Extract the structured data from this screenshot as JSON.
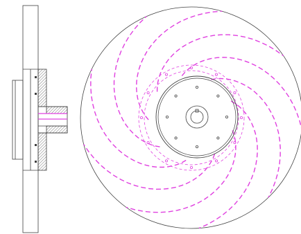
{
  "drawing": {
    "views": [
      "side-section-view",
      "front-view"
    ],
    "colors": {
      "outline": "#404040",
      "hidden_line": "#e040e0",
      "hatch": "#555555",
      "background": "#ffffff"
    },
    "front_view": {
      "blade_count": 9,
      "hub_bolt_holes": 8,
      "shroud_holes": 12,
      "line_style_blades": "dashed"
    }
  }
}
